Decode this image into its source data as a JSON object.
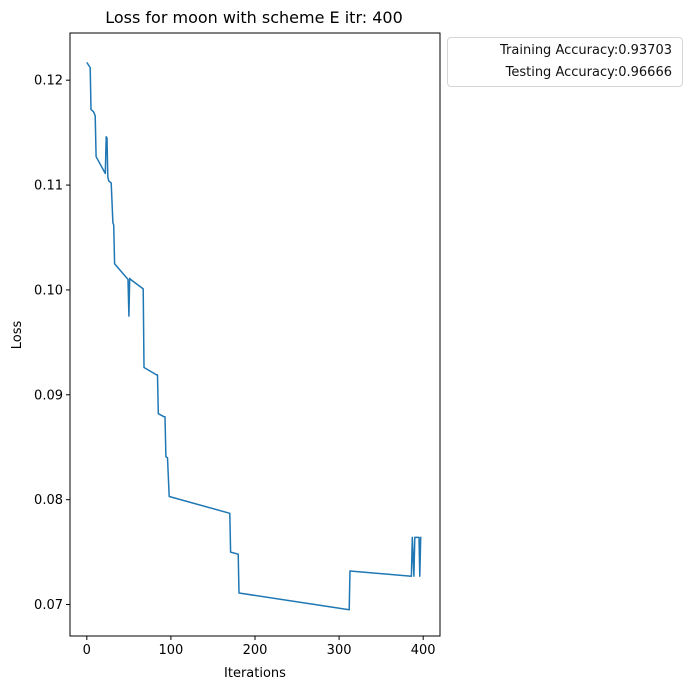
{
  "chart_data": {
    "type": "line",
    "title": "Loss for moon with scheme E itr: 400",
    "xlabel": "Iterations",
    "ylabel": "Loss",
    "xlim": [
      -20,
      420
    ],
    "ylim": [
      0.067,
      0.1245
    ],
    "xticks": [
      0,
      100,
      200,
      300,
      400
    ],
    "xtick_labels": [
      "0",
      "100",
      "200",
      "300",
      "400"
    ],
    "yticks": [
      0.07,
      0.08,
      0.09,
      0.1,
      0.11,
      0.12
    ],
    "ytick_labels": [
      "0.07",
      "0.08",
      "0.09",
      "0.10",
      "0.11",
      "0.12"
    ],
    "grid": false,
    "legend_position": "outside-top-right",
    "legend": [
      "Training Accuracy:0.93703",
      "Testing Accuracy:0.96666"
    ],
    "color": "#1f77b4",
    "series": [
      {
        "x": [
          0,
          4,
          5,
          8,
          10,
          11,
          22,
          23,
          24,
          25,
          26,
          29,
          31,
          32,
          33,
          34,
          49,
          50,
          51,
          52,
          67,
          68,
          83,
          84,
          85,
          92,
          93,
          94,
          96,
          98,
          170,
          171,
          180,
          181,
          312,
          313,
          386,
          387,
          389,
          390,
          391,
          392,
          395,
          396,
          397,
          398
        ],
        "y": [
          0.1217,
          0.1212,
          0.1172,
          0.117,
          0.1166,
          0.1127,
          0.1111,
          0.1146,
          0.1145,
          0.1108,
          0.1104,
          0.1102,
          0.1064,
          0.1062,
          0.1025,
          0.1024,
          0.101,
          0.0975,
          0.1011,
          0.101,
          0.1001,
          0.0926,
          0.0919,
          0.0919,
          0.0882,
          0.0879,
          0.0879,
          0.0841,
          0.084,
          0.0803,
          0.0787,
          0.075,
          0.0748,
          0.0711,
          0.0695,
          0.0732,
          0.0727,
          0.0764,
          0.0727,
          0.0764,
          0.0764,
          0.0764,
          0.0764,
          0.0727,
          0.0764,
          0.0764
        ]
      }
    ]
  }
}
